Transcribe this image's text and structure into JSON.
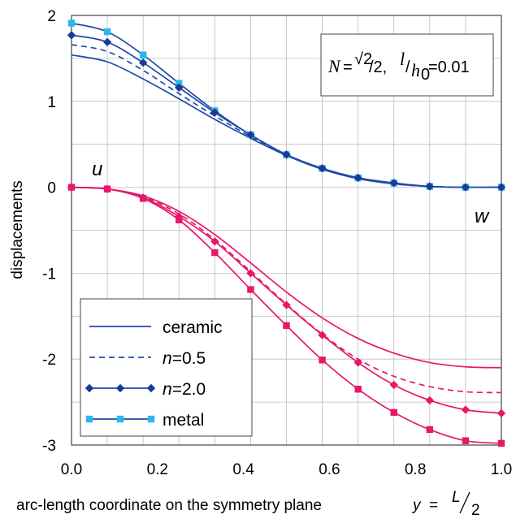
{
  "chart_data": {
    "type": "line",
    "x": [
      0.0,
      0.0833,
      0.1667,
      0.25,
      0.3333,
      0.4167,
      0.5,
      0.5833,
      0.6667,
      0.75,
      0.8333,
      0.9167,
      1.0
    ],
    "xlim": [
      0,
      1
    ],
    "ylim": [
      -3,
      2
    ],
    "xticks": [
      "0.0",
      "0.2",
      "0.4",
      "0.6",
      "0.8",
      "1.0"
    ],
    "yticks": [
      "2",
      "1",
      "0",
      "-1",
      "-2",
      "-3"
    ],
    "ylabel": "displacements",
    "xlabel": {
      "text": "arc-length coordinate on the symmetry plane",
      "var": "y",
      "eq": "=",
      "num": "L",
      "den": "2"
    },
    "annotations": {
      "u_label": "u",
      "w_label": "w"
    },
    "parameter_box": {
      "N": "N",
      "eq1": "=",
      "sqrt2": "√2",
      "slash2": "/2,",
      "l": "l",
      "slash": "/",
      "h0": "h",
      "h0_sub": "0",
      "eq2": "=0.01"
    },
    "grid": true,
    "legend_position": "bottom-left",
    "colors": {
      "w_series": "#1f4aa8",
      "u_series": "#e8176a",
      "metal_marker_w": "#2ab8e8",
      "ceramic_marker_w": "#1a3a9a"
    },
    "legend": [
      {
        "n_prefix": "",
        "label": "ceramic",
        "style": "solid",
        "marker": "none"
      },
      {
        "n_prefix": "n",
        "label": "=0.5",
        "style": "dashed",
        "marker": "none"
      },
      {
        "n_prefix": "n",
        "label": "=2.0",
        "style": "solid",
        "marker": "diamond"
      },
      {
        "n_prefix": "",
        "label": "metal",
        "style": "solid",
        "marker": "square"
      }
    ],
    "series": [
      {
        "group": "w",
        "material": "ceramic",
        "style": "solid",
        "marker": "none",
        "values": [
          1.54,
          1.46,
          1.26,
          1.03,
          0.79,
          0.57,
          0.37,
          0.21,
          0.1,
          0.04,
          0.01,
          0.0,
          0.0
        ]
      },
      {
        "group": "w",
        "material": "n=0.5",
        "style": "dashed",
        "marker": "none",
        "values": [
          1.66,
          1.58,
          1.36,
          1.09,
          0.83,
          0.59,
          0.38,
          0.22,
          0.11,
          0.04,
          0.01,
          0.0,
          0.0
        ]
      },
      {
        "group": "w",
        "material": "n=2.0",
        "style": "solid",
        "marker": "diamond",
        "values": [
          1.77,
          1.69,
          1.45,
          1.16,
          0.87,
          0.61,
          0.38,
          0.22,
          0.11,
          0.05,
          0.01,
          0.0,
          0.0
        ]
      },
      {
        "group": "w",
        "material": "metal",
        "style": "solid",
        "marker": "square",
        "values": [
          1.91,
          1.81,
          1.54,
          1.21,
          0.89,
          0.61,
          0.38,
          0.22,
          0.11,
          0.05,
          0.01,
          0.0,
          0.0
        ]
      },
      {
        "group": "u",
        "material": "ceramic",
        "style": "solid",
        "marker": "none",
        "values": [
          0.0,
          -0.02,
          -0.1,
          -0.28,
          -0.55,
          -0.88,
          -1.22,
          -1.52,
          -1.76,
          -1.93,
          -2.04,
          -2.09,
          -2.1
        ]
      },
      {
        "group": "u",
        "material": "n=0.5",
        "style": "dashed",
        "marker": "none",
        "values": [
          0.0,
          -0.02,
          -0.11,
          -0.31,
          -0.61,
          -0.98,
          -1.36,
          -1.71,
          -2.0,
          -2.2,
          -2.32,
          -2.38,
          -2.39
        ]
      },
      {
        "group": "u",
        "material": "n=2.0",
        "style": "solid",
        "marker": "diamond",
        "values": [
          0.0,
          -0.02,
          -0.12,
          -0.34,
          -0.63,
          -1.0,
          -1.37,
          -1.72,
          -2.04,
          -2.3,
          -2.48,
          -2.59,
          -2.63
        ]
      },
      {
        "group": "u",
        "material": "metal",
        "style": "solid",
        "marker": "square",
        "values": [
          0.0,
          -0.02,
          -0.13,
          -0.38,
          -0.76,
          -1.19,
          -1.61,
          -2.01,
          -2.35,
          -2.62,
          -2.82,
          -2.95,
          -2.98
        ]
      }
    ]
  }
}
